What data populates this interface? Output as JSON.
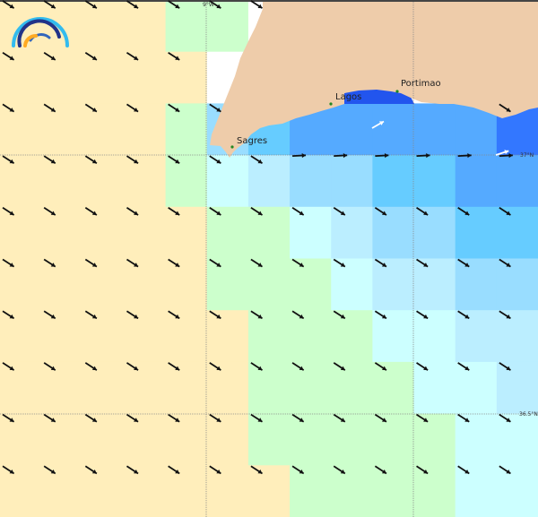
{
  "colors": {
    "Y": "#ffeebb",
    "G": "#ccffcc",
    "W": "#ccffff",
    "B1": "#bbeeff",
    "B2": "#99ddff",
    "B3": "#66ccff",
    "B4": "#55aaff",
    "B5": "#3377ff",
    "N": "#ffffff",
    "land": "#eeccaa",
    "bay": "#2255ee",
    "town": "#228822"
  },
  "cells": [
    "YYYYGGNNNNNNN",
    "YYYYYNNNNNNNN",
    "YYYYGB2B3B4B4B4B4B4B5",
    "YYYYGWB1B2B2B3B3B4B4",
    "YYYYYGGWB1B2B2B3B3",
    "YYYYYGGGWB1B1B2B2",
    "YYYYYYGGGWWB1B1",
    "YYYYYYGGGGWWB1",
    "YYYYYYGGGGGWW",
    "YYYYYYYGGGGWW"
  ],
  "places": [
    {
      "name": "Lagos",
      "lon_lat_label": "Lagos"
    },
    {
      "name": "Portimao"
    },
    {
      "name": "Sagres"
    }
  ],
  "graticule": {
    "lon": "9°W",
    "lat1": "37°N",
    "lat2": "36.5°N"
  },
  "arrows": {
    "default_direction": "southeast",
    "coastal_row_direction": "east"
  }
}
